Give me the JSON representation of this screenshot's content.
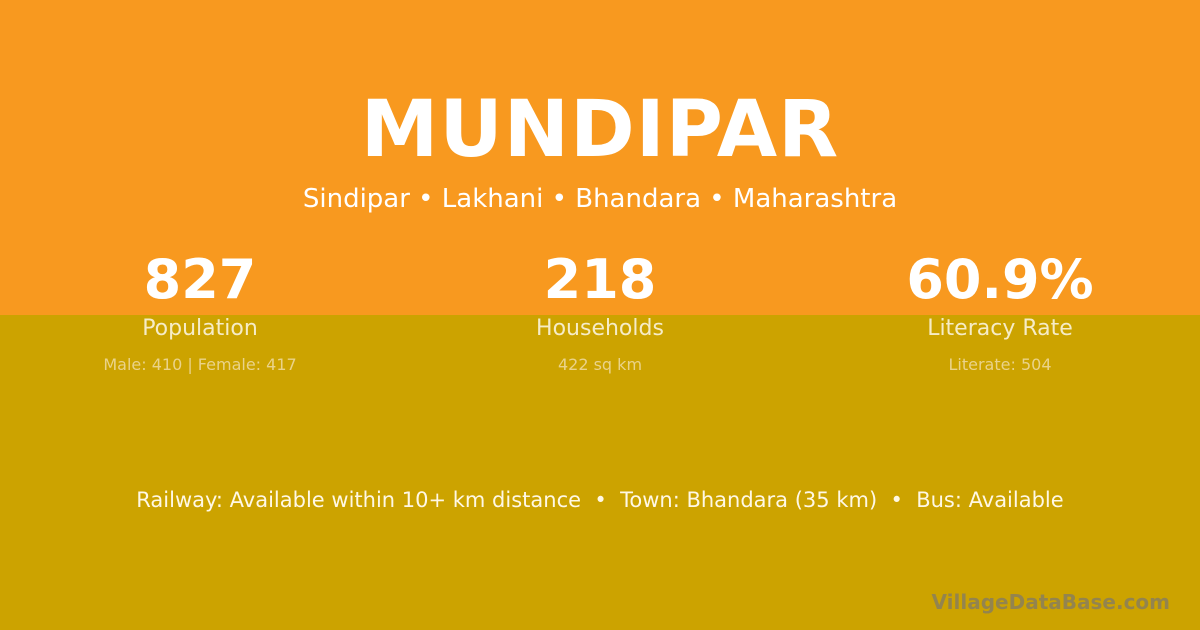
{
  "colors": {
    "top_background": "#f8991f",
    "bottom_background": "#cca300"
  },
  "title": "MUNDIPAR",
  "subtitle": "Sindipar • Lakhani • Bhandara • Maharashtra",
  "stats": [
    {
      "value": "827",
      "label": "Population",
      "detail": "Male: 410 | Female: 417"
    },
    {
      "value": "218",
      "label": "Households",
      "detail": "422 sq km"
    },
    {
      "value": "60.9%",
      "label": "Literacy Rate",
      "detail": "Literate: 504"
    }
  ],
  "info_line": "Railway: Available within 10+ km distance  •  Town: Bhandara (35 km)  •  Bus: Available",
  "watermark": "VillageDataBase.com"
}
